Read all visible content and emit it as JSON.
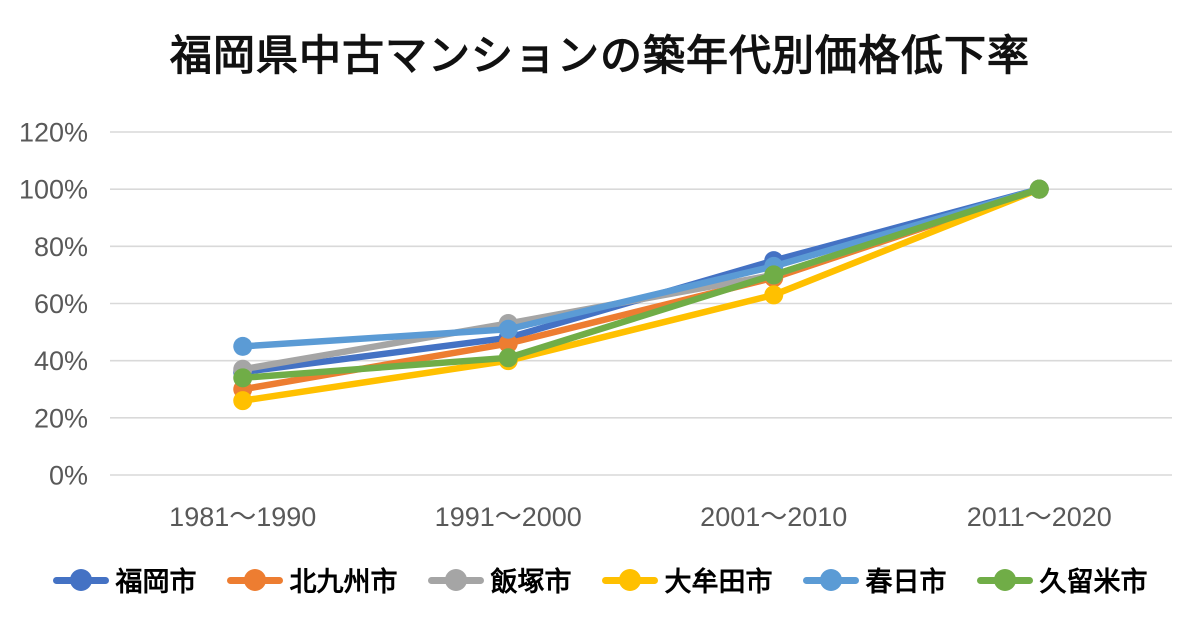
{
  "chart_data": {
    "type": "line",
    "title": "福岡県中古マンションの築年代別価格低下率",
    "categories": [
      "1981〜1990",
      "1991〜2000",
      "2001〜2010",
      "2011〜2020"
    ],
    "series": [
      {
        "name": "福岡市",
        "color": "#4472C4",
        "values": [
          36,
          48,
          75,
          100
        ]
      },
      {
        "name": "北九州市",
        "color": "#ED7D31",
        "values": [
          30,
          46,
          69,
          100
        ]
      },
      {
        "name": "飯塚市",
        "color": "#A5A5A5",
        "values": [
          37,
          53,
          70,
          100
        ]
      },
      {
        "name": "大牟田市",
        "color": "#FFC000",
        "values": [
          26,
          40,
          63,
          100
        ]
      },
      {
        "name": "春日市",
        "color": "#5B9BD5",
        "values": [
          45,
          51,
          73,
          100
        ]
      },
      {
        "name": "久留米市",
        "color": "#70AD47",
        "values": [
          34,
          41,
          70,
          100
        ]
      }
    ],
    "xlabel": "",
    "ylabel": "",
    "ylim": [
      0,
      120
    ],
    "y_tick_step": 20,
    "y_tick_labels": [
      "0%",
      "20%",
      "40%",
      "60%",
      "80%",
      "100%",
      "120%"
    ],
    "grid": true,
    "marker": "circle",
    "legend_position": "bottom",
    "colors": {
      "gridline": "#D9D9D9",
      "axis_text": "#595959",
      "title_text": "#111111",
      "legend_text": "#000000",
      "background": "#FFFFFF"
    }
  }
}
